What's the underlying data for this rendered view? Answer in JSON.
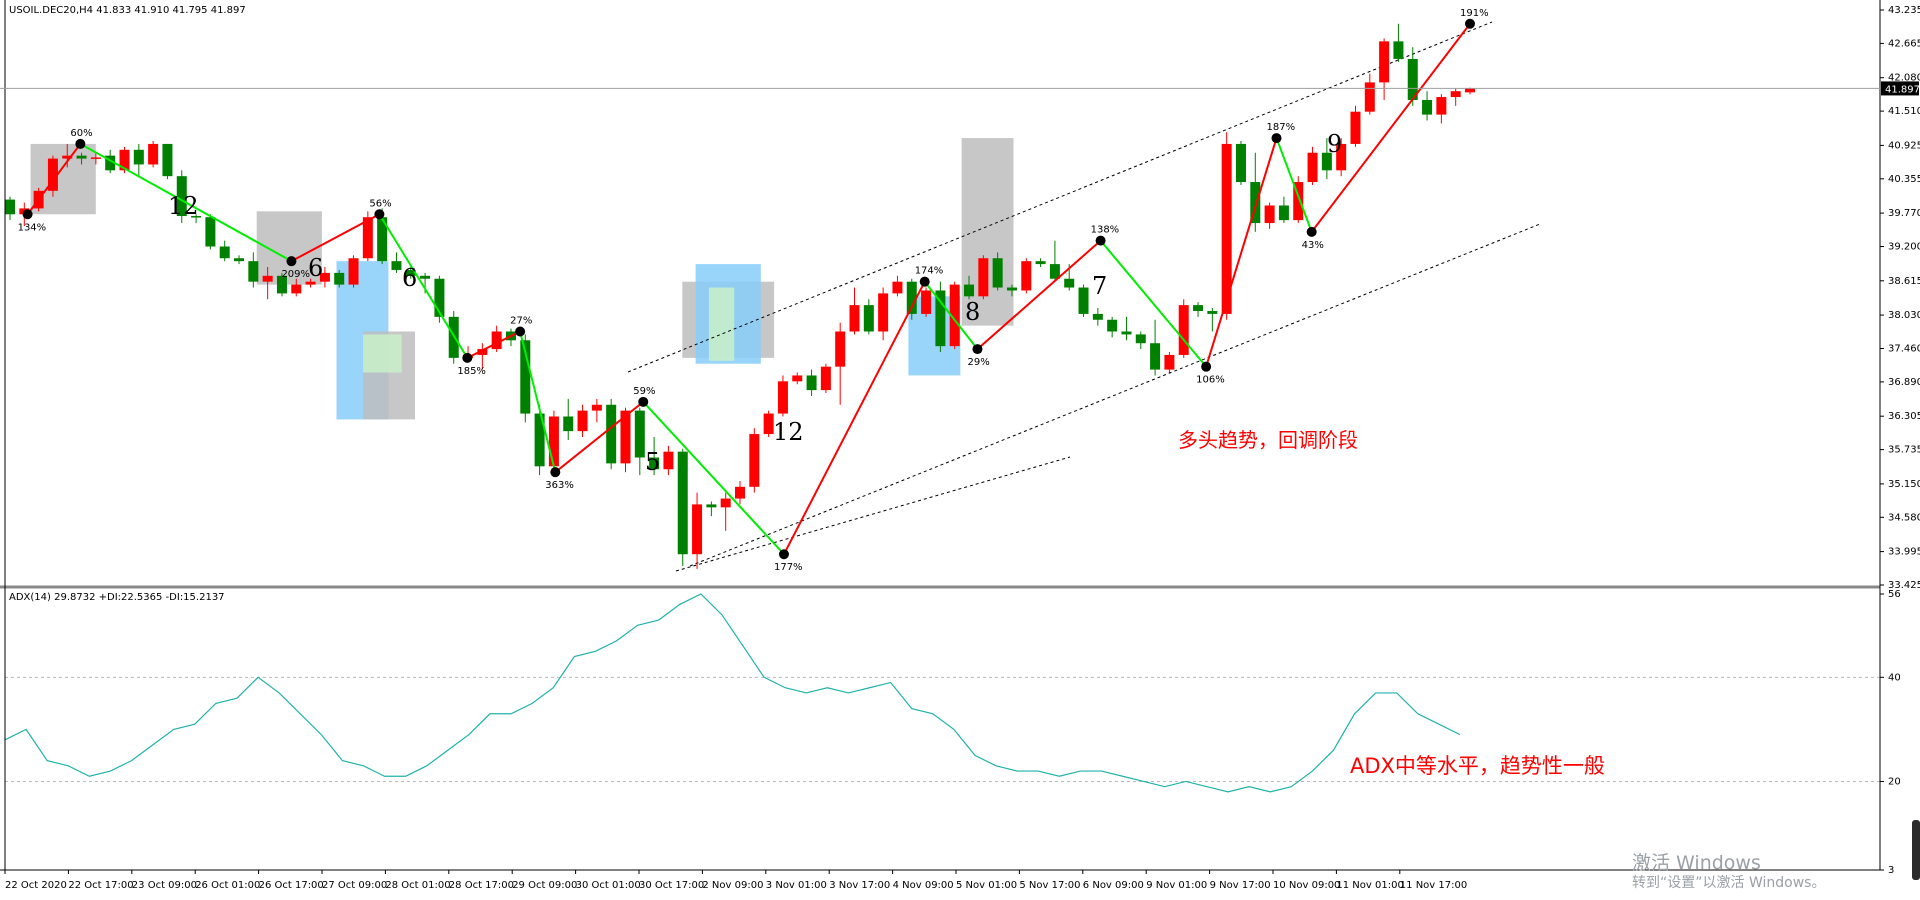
{
  "header": {
    "price_title": "USOIL.DEC20,H4  41.833 41.910 41.795 41.897",
    "indicator_title": "ADX(14) 29.8732 +DI:22.5365 -DI:15.2137"
  },
  "annotations": {
    "trend_note": "多头趋势，回调阶段",
    "adx_note": "ADX中等水平，趋势性一般"
  },
  "watermark": {
    "line1": "激活 Windows",
    "line2": "转到“设置”以激活 Windows。"
  },
  "colors": {
    "bull": "#ff0000",
    "bear": "#008000",
    "zigzag_up": "#ff0000",
    "zigzag_down": "#00ee00",
    "adx_line": "#20b2aa",
    "box_gray": "#bdbdbd",
    "box_blue": "#87cefa",
    "box_green": "#c8f0c8"
  },
  "chart_data": [
    {
      "type": "candlestick",
      "symbol": "USOIL.DEC20",
      "timeframe": "H4",
      "title": "USOIL.DEC20,H4",
      "ylim": [
        33.425,
        43.235
      ],
      "yticks": [
        "43.235",
        "42.665",
        "42.080",
        "41.510",
        "40.925",
        "40.355",
        "39.770",
        "39.200",
        "38.615",
        "38.030",
        "37.460",
        "36.890",
        "36.305",
        "35.735",
        "35.150",
        "34.580",
        "33.995",
        "33.425"
      ],
      "current_price": "41.897",
      "xticks": [
        "22 Oct 2020",
        "22 Oct 17:00",
        "23 Oct 09:00",
        "26 Oct 01:00",
        "26 Oct 17:00",
        "27 Oct 09:00",
        "28 Oct 01:00",
        "28 Oct 17:00",
        "29 Oct 09:00",
        "30 Oct 01:00",
        "30 Oct 17:00",
        "2 Nov 09:00",
        "3 Nov 01:00",
        "3 Nov 17:00",
        "4 Nov 09:00",
        "5 Nov 01:00",
        "5 Nov 17:00",
        "6 Nov 09:00",
        "9 Nov 01:00",
        "9 Nov 17:00",
        "10 Nov 09:00",
        "11 Nov 01:00",
        "11 Nov 17:00"
      ],
      "grid": false,
      "ohlc": [
        [
          40.0,
          40.05,
          39.65,
          39.75
        ],
        [
          39.75,
          39.95,
          39.55,
          39.85
        ],
        [
          39.85,
          40.2,
          39.8,
          40.15
        ],
        [
          40.15,
          40.75,
          40.05,
          40.7
        ],
        [
          40.7,
          40.95,
          40.55,
          40.75
        ],
        [
          40.75,
          40.8,
          40.6,
          40.7
        ],
        [
          40.7,
          40.8,
          40.6,
          40.72
        ],
        [
          40.75,
          40.85,
          40.45,
          40.5
        ],
        [
          40.5,
          40.9,
          40.45,
          40.85
        ],
        [
          40.85,
          40.95,
          40.4,
          40.6
        ],
        [
          40.6,
          41.0,
          40.55,
          40.95
        ],
        [
          40.95,
          40.95,
          40.35,
          40.4
        ],
        [
          40.4,
          40.5,
          39.6,
          39.72
        ],
        [
          39.72,
          39.75,
          39.6,
          39.7
        ],
        [
          39.7,
          39.75,
          39.15,
          39.2
        ],
        [
          39.2,
          39.3,
          38.95,
          39.0
        ],
        [
          39.0,
          39.05,
          38.9,
          38.95
        ],
        [
          38.95,
          39.1,
          38.5,
          38.6
        ],
        [
          38.6,
          38.85,
          38.3,
          38.7
        ],
        [
          38.7,
          38.75,
          38.35,
          38.4
        ],
        [
          38.4,
          38.65,
          38.35,
          38.55
        ],
        [
          38.55,
          38.65,
          38.5,
          38.6
        ],
        [
          38.6,
          38.85,
          38.5,
          38.75
        ],
        [
          38.75,
          38.8,
          38.5,
          38.55
        ],
        [
          38.55,
          39.05,
          38.5,
          39.0
        ],
        [
          39.0,
          39.8,
          38.95,
          39.7
        ],
        [
          39.7,
          39.85,
          38.9,
          38.95
        ],
        [
          38.95,
          39.1,
          38.75,
          38.8
        ],
        [
          38.8,
          38.85,
          38.65,
          38.7
        ],
        [
          38.7,
          38.75,
          38.4,
          38.65
        ],
        [
          38.65,
          38.7,
          37.9,
          38.0
        ],
        [
          38.0,
          38.1,
          37.2,
          37.3
        ],
        [
          37.3,
          37.5,
          37.25,
          37.35
        ],
        [
          37.35,
          37.55,
          37.1,
          37.45
        ],
        [
          37.45,
          37.85,
          37.4,
          37.75
        ],
        [
          37.75,
          37.8,
          37.5,
          37.6
        ],
        [
          37.6,
          37.7,
          36.2,
          36.35
        ],
        [
          36.35,
          36.5,
          35.3,
          35.45
        ],
        [
          35.45,
          36.4,
          35.3,
          36.3
        ],
        [
          36.3,
          36.6,
          35.9,
          36.05
        ],
        [
          36.05,
          36.5,
          35.95,
          36.4
        ],
        [
          36.4,
          36.6,
          36.2,
          36.5
        ],
        [
          36.5,
          36.6,
          35.4,
          35.5
        ],
        [
          35.5,
          36.45,
          35.35,
          36.4
        ],
        [
          36.4,
          36.45,
          35.3,
          35.6
        ],
        [
          35.6,
          35.95,
          35.3,
          35.4
        ],
        [
          35.4,
          35.8,
          35.3,
          35.7
        ],
        [
          35.7,
          35.75,
          33.75,
          33.95
        ],
        [
          33.95,
          35.0,
          33.7,
          34.8
        ],
        [
          34.8,
          34.85,
          34.6,
          34.75
        ],
        [
          34.75,
          35.0,
          34.35,
          34.9
        ],
        [
          34.9,
          35.2,
          34.8,
          35.1
        ],
        [
          35.1,
          36.1,
          35.0,
          36.0
        ],
        [
          36.0,
          36.4,
          35.95,
          36.35
        ],
        [
          36.35,
          37.0,
          36.3,
          36.9
        ],
        [
          36.9,
          37.05,
          36.85,
          37.0
        ],
        [
          37.0,
          37.1,
          36.65,
          36.75
        ],
        [
          36.75,
          37.2,
          36.7,
          37.15
        ],
        [
          37.15,
          37.9,
          36.5,
          37.75
        ],
        [
          37.75,
          38.5,
          37.7,
          38.2
        ],
        [
          38.2,
          38.3,
          37.7,
          37.75
        ],
        [
          37.75,
          38.5,
          37.6,
          38.4
        ],
        [
          38.4,
          38.7,
          38.35,
          38.6
        ],
        [
          38.6,
          38.65,
          37.95,
          38.05
        ],
        [
          38.05,
          38.5,
          38.0,
          38.45
        ],
        [
          38.45,
          38.6,
          37.4,
          37.5
        ],
        [
          37.5,
          38.6,
          37.45,
          38.55
        ],
        [
          38.55,
          38.7,
          38.3,
          38.35
        ],
        [
          38.35,
          39.05,
          38.3,
          39.0
        ],
        [
          39.0,
          39.1,
          38.45,
          38.5
        ],
        [
          38.5,
          38.55,
          38.35,
          38.45
        ],
        [
          38.45,
          39.0,
          38.4,
          38.95
        ],
        [
          38.95,
          39.0,
          38.85,
          38.9
        ],
        [
          38.9,
          39.3,
          38.6,
          38.65
        ],
        [
          38.65,
          38.9,
          38.45,
          38.5
        ],
        [
          38.5,
          38.55,
          38.0,
          38.05
        ],
        [
          38.05,
          38.15,
          37.85,
          37.95
        ],
        [
          37.95,
          38.0,
          37.65,
          37.75
        ],
        [
          37.75,
          38.0,
          37.6,
          37.7
        ],
        [
          37.7,
          37.75,
          37.45,
          37.55
        ],
        [
          37.55,
          37.95,
          37.0,
          37.1
        ],
        [
          37.1,
          37.4,
          37.05,
          37.35
        ],
        [
          37.35,
          38.3,
          37.3,
          38.2
        ],
        [
          38.2,
          38.25,
          38.0,
          38.1
        ],
        [
          38.1,
          38.15,
          37.75,
          38.05
        ],
        [
          38.05,
          41.15,
          37.95,
          40.95
        ],
        [
          40.95,
          41.0,
          40.25,
          40.3
        ],
        [
          40.3,
          40.8,
          39.45,
          39.6
        ],
        [
          39.6,
          39.95,
          39.5,
          39.9
        ],
        [
          39.9,
          40.05,
          39.6,
          39.65
        ],
        [
          39.65,
          40.4,
          39.6,
          40.3
        ],
        [
          40.3,
          40.9,
          40.25,
          40.8
        ],
        [
          40.8,
          41.05,
          40.35,
          40.5
        ],
        [
          40.5,
          41.05,
          40.4,
          40.95
        ],
        [
          40.95,
          41.6,
          40.9,
          41.5
        ],
        [
          41.5,
          42.15,
          41.45,
          42.0
        ],
        [
          42.0,
          42.75,
          41.7,
          42.7
        ],
        [
          42.7,
          43.0,
          42.35,
          42.4
        ],
        [
          42.4,
          42.6,
          41.6,
          41.7
        ],
        [
          41.7,
          41.85,
          41.35,
          41.45
        ],
        [
          41.45,
          41.8,
          41.3,
          41.75
        ],
        [
          41.75,
          41.9,
          41.6,
          41.85
        ],
        [
          41.83,
          41.91,
          41.795,
          41.897
        ]
      ],
      "zigzag_labels": [
        "134%",
        "60%",
        "209%",
        "56%",
        "185%",
        "27%",
        "363%",
        "59%",
        "177%",
        "174%",
        "29%",
        "138%",
        "106%",
        "187%",
        "43%",
        "191%"
      ],
      "wave_labels": [
        "12",
        "6",
        "6",
        "5",
        "12",
        "8",
        "7",
        "9"
      ]
    },
    {
      "type": "line",
      "title": "ADX(14)",
      "ylim": [
        3,
        56
      ],
      "yticks": [
        "56",
        "40",
        "20",
        "3"
      ],
      "reference_levels": [
        40,
        20
      ],
      "series": [
        {
          "name": "ADX",
          "values": [
            28,
            30,
            24,
            23,
            21,
            22,
            24,
            27,
            30,
            31,
            35,
            36,
            40,
            37,
            33,
            29,
            24,
            23,
            21,
            21,
            23,
            26,
            29,
            33,
            33,
            35,
            38,
            44,
            45,
            47,
            50,
            51,
            54,
            56,
            52,
            46,
            40,
            38,
            37,
            38,
            37,
            38,
            39,
            34,
            33,
            30,
            25,
            23,
            22,
            22,
            21,
            22,
            22,
            21,
            20,
            19,
            20,
            19,
            18,
            19,
            18,
            19,
            22,
            26,
            33,
            37,
            37,
            33,
            31,
            29
          ]
        }
      ]
    }
  ]
}
